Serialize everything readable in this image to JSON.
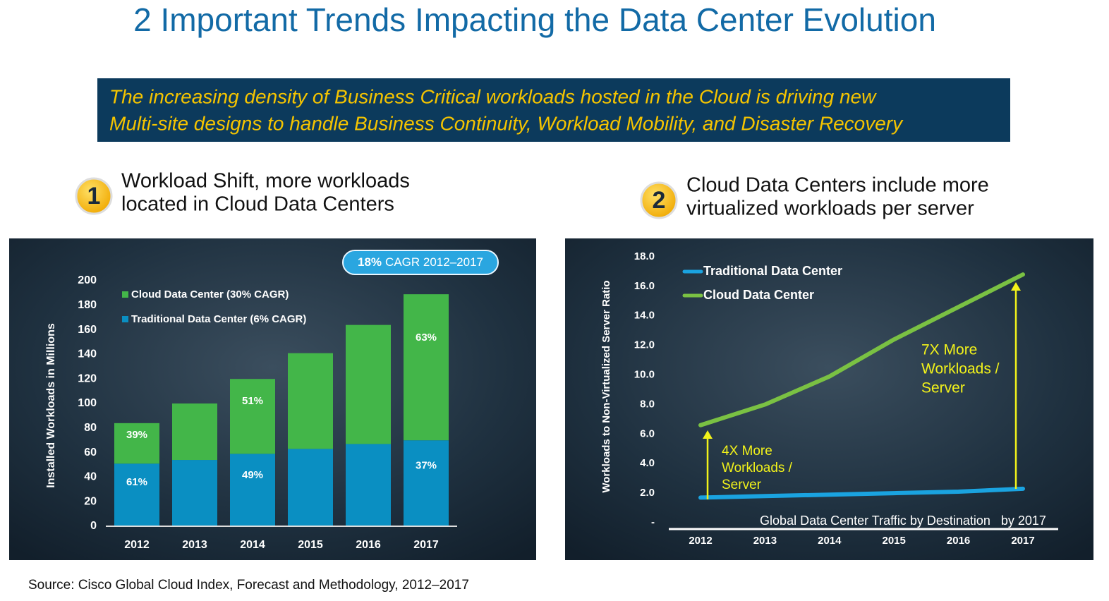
{
  "slide": {
    "title": "2 Important Trends Impacting the Data Center Evolution",
    "banner": [
      "The increasing density of Business Critical workloads hosted in the Cloud is driving new",
      "Multi-site designs to handle Business Continuity, Workload Mobility, and Disaster Recovery"
    ],
    "trends": [
      {
        "number": "1",
        "heading": [
          "Workload Shift, more workloads",
          "located in Cloud Data Centers"
        ]
      },
      {
        "number": "2",
        "heading": [
          "Cloud Data Centers include more",
          "virtualized workloads per server"
        ]
      }
    ],
    "source": "Source: Cisco Global Cloud Index, Forecast and Methodology, 2012–2017"
  },
  "chart_data": [
    {
      "type": "bar",
      "stacked": true,
      "ylabel": "Installed Workloads in Millions",
      "annotation": [
        "18%",
        "CAGR 2012–2017"
      ],
      "categories": [
        "2012",
        "2013",
        "2014",
        "2015",
        "2016",
        "2017"
      ],
      "series": [
        {
          "name": "Traditional Data Center (6% CAGR)",
          "color": "#0a8fc2",
          "values": [
            51,
            54,
            59,
            63,
            67,
            70
          ],
          "labels": [
            "61%",
            null,
            "49%",
            null,
            null,
            "37%"
          ]
        },
        {
          "name": "Cloud Data Center (30% CAGR)",
          "color": "#43b649",
          "values": [
            33,
            46,
            61,
            78,
            97,
            119
          ],
          "labels": [
            "39%",
            null,
            "51%",
            null,
            null,
            "63%"
          ]
        }
      ],
      "ylim": [
        0,
        200
      ],
      "yticks": [
        0,
        20,
        40,
        60,
        80,
        100,
        120,
        140,
        160,
        180,
        200
      ]
    },
    {
      "type": "line",
      "ylabel": "Workloads to Non-Virtualized Server Ratio",
      "xlabel": "Global Data Center Traffic by Destination   by 2017",
      "categories": [
        "2012",
        "2013",
        "2014",
        "2015",
        "2016",
        "2017"
      ],
      "series": [
        {
          "name": "Traditional Data Center",
          "color": "#1aa3e0",
          "values": [
            1.7,
            1.8,
            1.9,
            2.0,
            2.1,
            2.3
          ]
        },
        {
          "name": "Cloud Data Center",
          "color": "#7ac143",
          "values": [
            6.6,
            8.0,
            9.9,
            12.4,
            14.6,
            16.8
          ]
        }
      ],
      "ylim": [
        0,
        18
      ],
      "yticks": [
        {
          "value": 0,
          "label": "-"
        },
        {
          "value": 2,
          "label": "2.0"
        },
        {
          "value": 4,
          "label": "4.0"
        },
        {
          "value": 6,
          "label": "6.0"
        },
        {
          "value": 8,
          "label": "8.0"
        },
        {
          "value": 10,
          "label": "10.0"
        },
        {
          "value": 12,
          "label": "12.0"
        },
        {
          "value": 14,
          "label": "14.0"
        },
        {
          "value": 16,
          "label": "16.0"
        },
        {
          "value": 18,
          "label": "18.0"
        }
      ],
      "annotations": [
        [
          "4X More",
          "Workloads /",
          "Server"
        ],
        [
          "7X More",
          "Workloads /",
          "Server"
        ]
      ]
    }
  ]
}
